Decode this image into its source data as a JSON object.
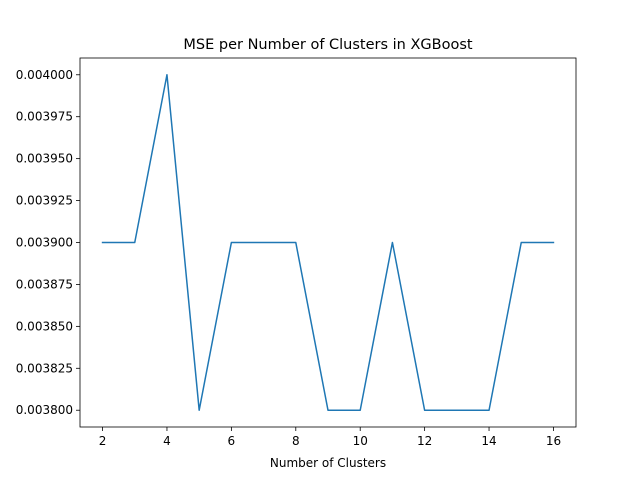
{
  "chart_data": {
    "type": "line",
    "title": "MSE per Number of Clusters in XGBoost",
    "xlabel": "Number of Clusters",
    "ylabel": "",
    "x": [
      2,
      3,
      4,
      5,
      6,
      7,
      8,
      9,
      10,
      11,
      12,
      13,
      14,
      15,
      16
    ],
    "series": [
      {
        "values": [
          0.0039,
          0.0039,
          0.004,
          0.0038,
          0.0039,
          0.0039,
          0.0039,
          0.0038,
          0.0038,
          0.0039,
          0.0038,
          0.0038,
          0.0038,
          0.0039,
          0.0039
        ],
        "color": "#1f77b4"
      }
    ],
    "xlim": [
      1.3,
      16.7
    ],
    "ylim": [
      0.00379,
      0.00401
    ],
    "xticks": [
      2,
      4,
      6,
      8,
      10,
      12,
      14,
      16
    ],
    "xtick_labels": [
      "2",
      "4",
      "6",
      "8",
      "10",
      "12",
      "14",
      "16"
    ],
    "yticks": [
      0.0038,
      0.003825,
      0.00385,
      0.003875,
      0.0039,
      0.003925,
      0.00395,
      0.003975,
      0.004
    ],
    "ytick_labels": [
      "0.003800",
      "0.003825",
      "0.003850",
      "0.003875",
      "0.003900",
      "0.003925",
      "0.003950",
      "0.003975",
      "0.004000"
    ],
    "grid": false,
    "legend": "none"
  }
}
